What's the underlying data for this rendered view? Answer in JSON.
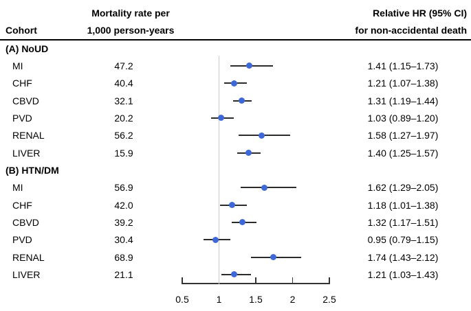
{
  "header": {
    "col_cohort": "Cohort",
    "col_mortality_line1": "Mortality rate per",
    "col_mortality_line2": "1,000 person-years",
    "col_hr_line1": "Relative HR (95% CI)",
    "col_hr_line2": "for non-accidental death"
  },
  "chart_data": {
    "type": "forest",
    "x_axis": {
      "range": [
        0.5,
        2.5
      ],
      "ticks": [
        0.5,
        1,
        1.5,
        2,
        2.5
      ],
      "tick_labels": [
        "0.5",
        "1",
        "1.5",
        "2",
        "2.5"
      ],
      "reference_line": 1
    },
    "sections": [
      {
        "label": "(A) NoUD",
        "rows": [
          {
            "cohort": "MI",
            "mortality_rate": "47.2",
            "hr": 1.41,
            "ci_low": 1.15,
            "ci_high": 1.73,
            "hr_text": "1.41 (1.15–1.73)"
          },
          {
            "cohort": "CHF",
            "mortality_rate": "40.4",
            "hr": 1.21,
            "ci_low": 1.07,
            "ci_high": 1.38,
            "hr_text": "1.21 (1.07–1.38)"
          },
          {
            "cohort": "CBVD",
            "mortality_rate": "32.1",
            "hr": 1.31,
            "ci_low": 1.19,
            "ci_high": 1.44,
            "hr_text": "1.31 (1.19–1.44)"
          },
          {
            "cohort": "PVD",
            "mortality_rate": "20.2",
            "hr": 1.03,
            "ci_low": 0.89,
            "ci_high": 1.2,
            "hr_text": "1.03 (0.89–1.20)"
          },
          {
            "cohort": "RENAL",
            "mortality_rate": "56.2",
            "hr": 1.58,
            "ci_low": 1.27,
            "ci_high": 1.97,
            "hr_text": "1.58 (1.27–1.97)"
          },
          {
            "cohort": "LIVER",
            "mortality_rate": "15.9",
            "hr": 1.4,
            "ci_low": 1.25,
            "ci_high": 1.57,
            "hr_text": "1.40 (1.25–1.57)"
          }
        ]
      },
      {
        "label": "(B) HTN/DM",
        "rows": [
          {
            "cohort": "MI",
            "mortality_rate": "56.9",
            "hr": 1.62,
            "ci_low": 1.29,
            "ci_high": 2.05,
            "hr_text": "1.62 (1.29–2.05)"
          },
          {
            "cohort": "CHF",
            "mortality_rate": "42.0",
            "hr": 1.18,
            "ci_low": 1.01,
            "ci_high": 1.38,
            "hr_text": "1.18 (1.01–1.38)"
          },
          {
            "cohort": "CBVD",
            "mortality_rate": "39.2",
            "hr": 1.32,
            "ci_low": 1.17,
            "ci_high": 1.51,
            "hr_text": "1.32 (1.17–1.51)"
          },
          {
            "cohort": "PVD",
            "mortality_rate": "30.4",
            "hr": 0.95,
            "ci_low": 0.79,
            "ci_high": 1.15,
            "hr_text": "0.95 (0.79–1.15)"
          },
          {
            "cohort": "RENAL",
            "mortality_rate": "68.9",
            "hr": 1.74,
            "ci_low": 1.43,
            "ci_high": 2.12,
            "hr_text": "1.74 (1.43–2.12)"
          },
          {
            "cohort": "LIVER",
            "mortality_rate": "21.1",
            "hr": 1.21,
            "ci_low": 1.03,
            "ci_high": 1.43,
            "hr_text": "1.21 (1.03–1.43)"
          }
        ]
      }
    ]
  },
  "colors": {
    "point": "#3e68d8",
    "ci_line": "#2b2b2b",
    "reference_line": "#cccccc",
    "axis": "#333333",
    "text": "#000000"
  }
}
